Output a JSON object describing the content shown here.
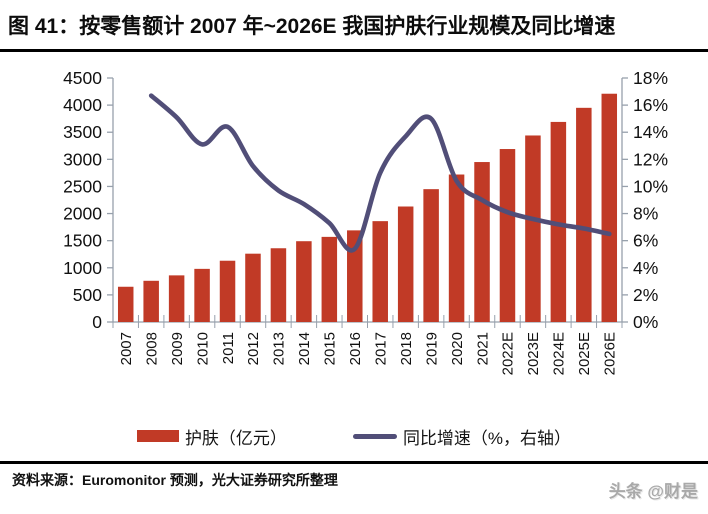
{
  "header": {
    "title": "图 41：按零售额计 2007 年~2026E 我国护肤行业规模及同比增速"
  },
  "chart_data": {
    "type": "bar",
    "title": "按零售额计 2007 年~2026E 我国护肤行业规模及同比增速",
    "categories": [
      "2007",
      "2008",
      "2009",
      "2010",
      "2011",
      "2012",
      "2013",
      "2014",
      "2015",
      "2016",
      "2017",
      "2018",
      "2019",
      "2020",
      "2021",
      "2022E",
      "2023E",
      "2024E",
      "2025E",
      "2026E"
    ],
    "series": [
      {
        "name": "护肤（亿元）",
        "type": "bar",
        "axis": "left",
        "color": "#C13A26",
        "values": [
          650,
          760,
          860,
          980,
          1130,
          1260,
          1360,
          1490,
          1570,
          1690,
          1860,
          2130,
          2450,
          2720,
          2950,
          3190,
          3440,
          3690,
          3950,
          4210
        ]
      },
      {
        "name": "同比增速（%，右轴）",
        "type": "line",
        "axis": "right",
        "color": "#514E78",
        "values": [
          null,
          16.7,
          15.1,
          13.1,
          14.4,
          11.5,
          9.7,
          8.7,
          7.3,
          5.4,
          11.0,
          13.7,
          15.0,
          10.4,
          9.0,
          8.1,
          7.6,
          7.2,
          6.9,
          6.5
        ]
      }
    ],
    "left_axis": {
      "min": 0,
      "max": 4500,
      "step": 500,
      "labels": [
        "0",
        "500",
        "1000",
        "1500",
        "2000",
        "2500",
        "3000",
        "3500",
        "4000",
        "4500"
      ]
    },
    "right_axis": {
      "min": 0,
      "max": 18,
      "step": 2,
      "labels": [
        "0%",
        "2%",
        "4%",
        "6%",
        "8%",
        "10%",
        "12%",
        "14%",
        "16%",
        "18%"
      ]
    },
    "grid": "off",
    "legend_position": "bottom",
    "axis_color": "#97A0AC"
  },
  "footer": {
    "source": "资料来源：Euromonitor 预测，光大证券研究所整理",
    "watermark": "头条 @财是"
  }
}
